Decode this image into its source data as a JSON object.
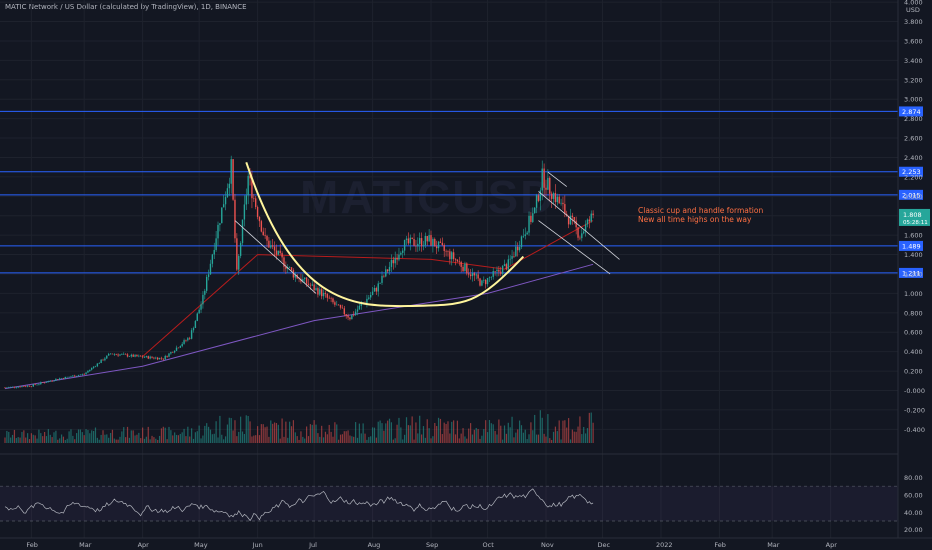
{
  "header": {
    "title": "MATIC Network / US Dollar (calculated by TradingView), 1D, BINANCE"
  },
  "watermark": "MATICUSD",
  "price_scale": {
    "currency": "USD",
    "ticks": [
      "4.000",
      "3.800",
      "3.600",
      "3.400",
      "3.200",
      "3.000",
      "2.800",
      "2.600",
      "2.400",
      "2.200",
      "2.000",
      "1.800",
      "1.600",
      "1.400",
      "1.200",
      "1.000",
      "0.800",
      "0.600",
      "0.400",
      "0.200",
      "-0.000",
      "-0.200",
      "-0.400"
    ],
    "current_price": "1.808",
    "countdown": "05:28:11"
  },
  "rsi_scale": {
    "ticks": [
      "80.00",
      "60.00",
      "40.00",
      "20.00"
    ]
  },
  "time_axis": {
    "labels": [
      "Feb",
      "Mar",
      "Apr",
      "May",
      "Jun",
      "Jul",
      "Aug",
      "Sep",
      "Oct",
      "Nov",
      "Dec",
      "2022",
      "Feb",
      "Mar",
      "Apr"
    ]
  },
  "levels": [
    {
      "value": 2.874,
      "label": "2.874"
    },
    {
      "value": 2.253,
      "label": "2.253"
    },
    {
      "value": 2.015,
      "label": "2.015"
    },
    {
      "value": 1.489,
      "label": "1.489"
    },
    {
      "value": 1.211,
      "label": "1.211"
    }
  ],
  "annotation": {
    "line1": "Classic cup and handle formation",
    "line2": "New all time highs on the way"
  },
  "colors": {
    "background": "#131722",
    "up": "#26a69a",
    "down": "#ef5350",
    "level": "#2962ff",
    "cup": "#fff59d",
    "ma_fast": "#b71c1c",
    "ma_slow": "#7e57c2",
    "annotation": "#ff7043",
    "rsi": "#b2b5be"
  },
  "chart_data": {
    "type": "candlestick",
    "title": "MATIC Network / US Dollar (calculated by TradingView), 1D, BINANCE",
    "ylim": [
      -0.5,
      4.0
    ],
    "x_range": [
      "2021-01-18",
      "2022-04-30"
    ],
    "price_path": [
      {
        "date": "2021-01-18",
        "close": 0.03
      },
      {
        "date": "2021-02-01",
        "close": 0.05
      },
      {
        "date": "2021-02-15",
        "close": 0.12
      },
      {
        "date": "2021-03-01",
        "close": 0.17
      },
      {
        "date": "2021-03-15",
        "close": 0.38
      },
      {
        "date": "2021-03-29",
        "close": 0.35
      },
      {
        "date": "2021-04-12",
        "close": 0.33
      },
      {
        "date": "2021-04-26",
        "close": 0.55
      },
      {
        "date": "2021-05-03",
        "close": 0.95
      },
      {
        "date": "2021-05-10",
        "close": 1.6
      },
      {
        "date": "2021-05-18",
        "close": 2.3
      },
      {
        "date": "2021-05-21",
        "close": 1.2
      },
      {
        "date": "2021-05-27",
        "close": 2.2
      },
      {
        "date": "2021-06-05",
        "close": 1.55
      },
      {
        "date": "2021-06-20",
        "close": 1.2
      },
      {
        "date": "2021-07-05",
        "close": 1.0
      },
      {
        "date": "2021-07-20",
        "close": 0.75
      },
      {
        "date": "2021-08-03",
        "close": 1.05
      },
      {
        "date": "2021-08-17",
        "close": 1.5
      },
      {
        "date": "2021-08-31",
        "close": 1.55
      },
      {
        "date": "2021-09-14",
        "close": 1.35
      },
      {
        "date": "2021-09-28",
        "close": 1.1
      },
      {
        "date": "2021-10-12",
        "close": 1.3
      },
      {
        "date": "2021-10-26",
        "close": 1.85
      },
      {
        "date": "2021-10-30",
        "close": 2.2
      },
      {
        "date": "2021-11-09",
        "close": 1.9
      },
      {
        "date": "2021-11-19",
        "close": 1.6
      },
      {
        "date": "2021-11-26",
        "close": 1.808
      }
    ],
    "moving_averages": [
      {
        "name": "fast",
        "points": [
          {
            "date": "2021-04-01",
            "value": 0.35
          },
          {
            "date": "2021-06-01",
            "value": 1.4
          },
          {
            "date": "2021-09-01",
            "value": 1.35
          },
          {
            "date": "2021-10-10",
            "value": 1.25
          },
          {
            "date": "2021-11-26",
            "value": 1.75
          }
        ]
      },
      {
        "name": "slow",
        "points": [
          {
            "date": "2021-01-18",
            "value": 0.02
          },
          {
            "date": "2021-04-01",
            "value": 0.25
          },
          {
            "date": "2021-07-01",
            "value": 0.72
          },
          {
            "date": "2021-10-01",
            "value": 1.0
          },
          {
            "date": "2021-11-26",
            "value": 1.3
          }
        ]
      }
    ],
    "rsi_range": [
      20,
      80
    ]
  }
}
